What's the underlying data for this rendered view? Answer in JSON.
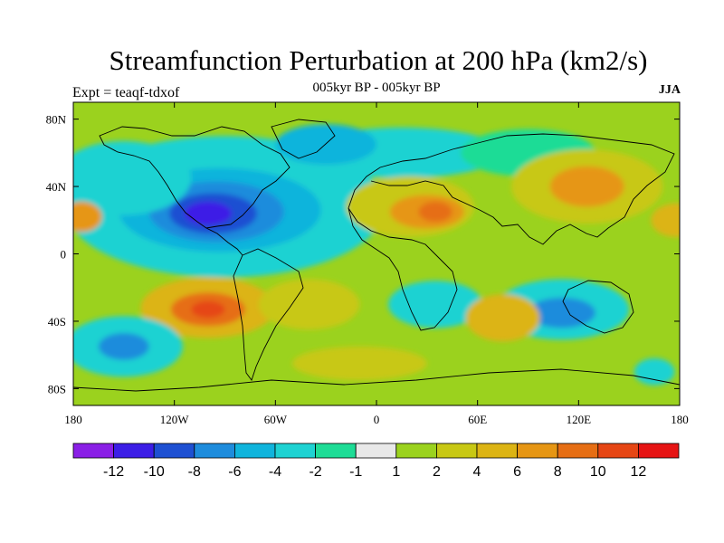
{
  "header": {
    "title": "Streamfunction Perturbation at 200 hPa (km2/s)",
    "subtitle": "005kyr BP - 005kyr BP",
    "expt": "Expt = teaqf-tdxof",
    "season": "JJA"
  },
  "axes": {
    "lat_ticks": [
      "80N",
      "40N",
      "0",
      "40S",
      "80S"
    ],
    "lon_ticks": [
      "180",
      "120W",
      "60W",
      "0",
      "60E",
      "120E",
      "180"
    ]
  },
  "colorbar": {
    "colors": [
      "#8a1fe6",
      "#3c1ee6",
      "#1e50d2",
      "#1e8cdc",
      "#10b4dc",
      "#1ed2d2",
      "#1edc96",
      "#e8e8e8",
      "#9bd21e",
      "#c8c814",
      "#dcb414",
      "#e69614",
      "#e66e14",
      "#e64614",
      "#e61414"
    ],
    "labels": [
      "-12",
      "-10",
      "-8",
      "-6",
      "-4",
      "-2",
      "-1",
      "1",
      "2",
      "4",
      "6",
      "8",
      "10",
      "12"
    ]
  },
  "field_blobs": [
    {
      "lon": -90,
      "lat": 28,
      "rx": 95,
      "ry": 42,
      "level": 5
    },
    {
      "lon": -93,
      "lat": 26,
      "rx": 60,
      "ry": 25,
      "level": 4
    },
    {
      "lon": -95,
      "lat": 25,
      "rx": 40,
      "ry": 18,
      "level": 3
    },
    {
      "lon": -97,
      "lat": 24,
      "rx": 26,
      "ry": 12,
      "level": 2
    },
    {
      "lon": -100,
      "lat": 24,
      "rx": 14,
      "ry": 7,
      "level": 1
    },
    {
      "lon": -150,
      "lat": 45,
      "rx": 40,
      "ry": 22,
      "level": 5
    },
    {
      "lon": 15,
      "lat": 60,
      "rx": 60,
      "ry": 15,
      "level": 5
    },
    {
      "lon": -30,
      "lat": 65,
      "rx": 30,
      "ry": 12,
      "level": 4
    },
    {
      "lon": 90,
      "lat": 60,
      "rx": 40,
      "ry": 14,
      "level": 6
    },
    {
      "lon": 20,
      "lat": 28,
      "rx": 38,
      "ry": 18,
      "level": 9
    },
    {
      "lon": 30,
      "lat": 25,
      "rx": 22,
      "ry": 10,
      "level": 11
    },
    {
      "lon": 35,
      "lat": 25,
      "rx": 10,
      "ry": 6,
      "level": 12
    },
    {
      "lon": 125,
      "lat": 40,
      "rx": 45,
      "ry": 22,
      "level": 9
    },
    {
      "lon": 125,
      "lat": 40,
      "rx": 22,
      "ry": 12,
      "level": 11
    },
    {
      "lon": 178,
      "lat": 20,
      "rx": 15,
      "ry": 10,
      "level": 10
    },
    {
      "lon": -175,
      "lat": 22,
      "rx": 12,
      "ry": 9,
      "level": 11
    },
    {
      "lon": -100,
      "lat": -32,
      "rx": 40,
      "ry": 18,
      "level": 10
    },
    {
      "lon": -100,
      "lat": -33,
      "rx": 22,
      "ry": 10,
      "level": 12
    },
    {
      "lon": -100,
      "lat": -33,
      "rx": 10,
      "ry": 5,
      "level": 13
    },
    {
      "lon": -150,
      "lat": -55,
      "rx": 35,
      "ry": 18,
      "level": 5
    },
    {
      "lon": -150,
      "lat": -55,
      "rx": 15,
      "ry": 8,
      "level": 3
    },
    {
      "lon": 35,
      "lat": -30,
      "rx": 28,
      "ry": 14,
      "level": 5
    },
    {
      "lon": 110,
      "lat": -33,
      "rx": 40,
      "ry": 18,
      "level": 5
    },
    {
      "lon": 110,
      "lat": -35,
      "rx": 20,
      "ry": 9,
      "level": 3
    },
    {
      "lon": 165,
      "lat": -70,
      "rx": 12,
      "ry": 8,
      "level": 5
    },
    {
      "lon": 75,
      "lat": -38,
      "rx": 22,
      "ry": 14,
      "level": 10
    },
    {
      "lon": -40,
      "lat": -30,
      "rx": 30,
      "ry": 15,
      "level": 9
    },
    {
      "lon": -10,
      "lat": -65,
      "rx": 40,
      "ry": 10,
      "level": 9
    }
  ]
}
